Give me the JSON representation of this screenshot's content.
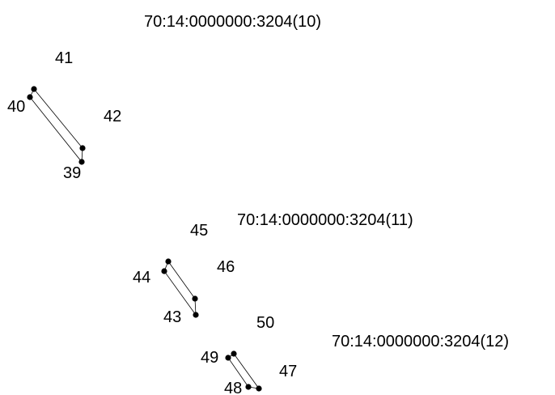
{
  "parcels": [
    {
      "cadastral_number": "70:14:0000000:3204(10)",
      "points": [
        {
          "number": "39"
        },
        {
          "number": "40"
        },
        {
          "number": "41"
        },
        {
          "number": "42"
        }
      ]
    },
    {
      "cadastral_number": "70:14:0000000:3204(11)",
      "points": [
        {
          "number": "43"
        },
        {
          "number": "44"
        },
        {
          "number": "45"
        },
        {
          "number": "46"
        }
      ]
    },
    {
      "cadastral_number": "70:14:0000000:3204(12)",
      "points": [
        {
          "number": "47"
        },
        {
          "number": "48"
        },
        {
          "number": "49"
        },
        {
          "number": "50"
        }
      ]
    }
  ]
}
